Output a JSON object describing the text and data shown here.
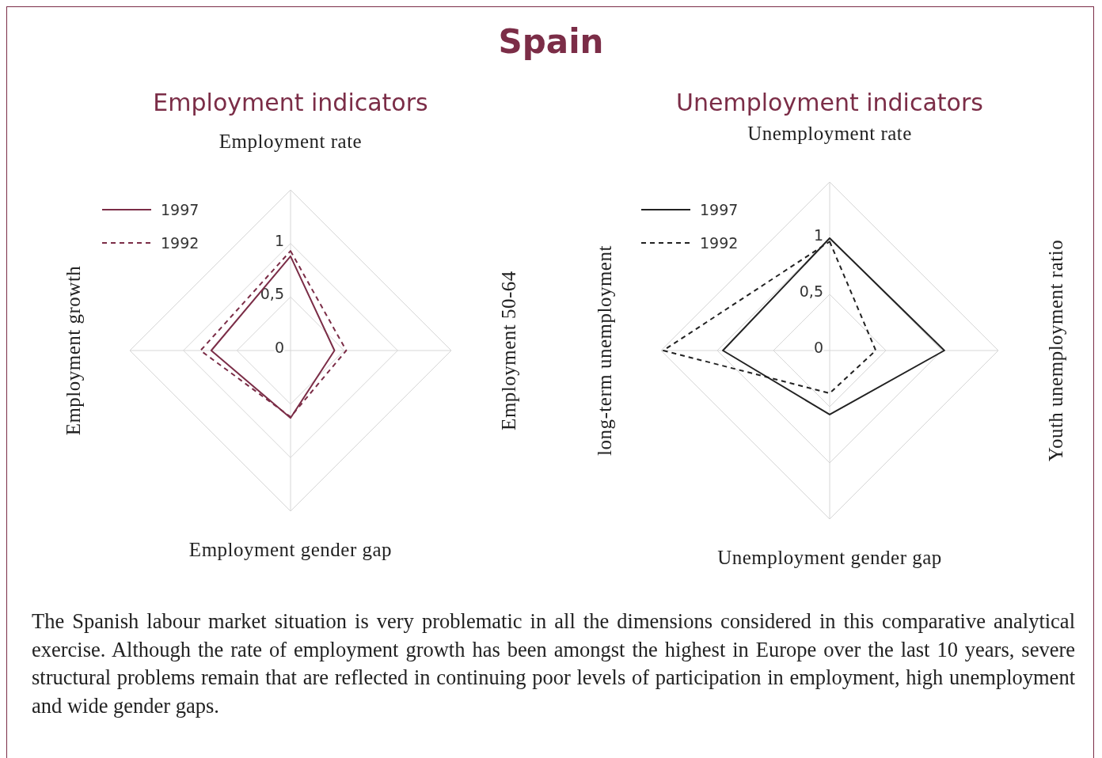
{
  "chart_data": [
    {
      "type": "radar",
      "title": "Employment indicators",
      "categories": [
        "Employment rate",
        "Employment 50-64",
        "Employment gender gap",
        "Employment growth"
      ],
      "ylim": [
        0,
        1.5
      ],
      "yticks": [
        {
          "value": 0,
          "label": "0"
        },
        {
          "value": 0.5,
          "label": "0,5"
        },
        {
          "value": 1,
          "label": "1"
        }
      ],
      "grid": true,
      "legend": "top left",
      "series": [
        {
          "name": "1997",
          "color": "#7b2d47",
          "line_style": "solid",
          "values": [
            0.88,
            0.41,
            0.63,
            0.74
          ]
        },
        {
          "name": "1992",
          "color": "#7b2d47",
          "line_style": "dashed",
          "values": [
            0.93,
            0.52,
            0.62,
            0.84
          ]
        }
      ],
      "annotations": [
        "Spain",
        "The Spanish labour market situation is very problematic in all the dimensions considered in this comparative analytical exercise. Although the rate of employment growth has been amongst the highest in Europe over the last 10 years, severe structural problems remain that are reflected in continuing poor levels of participation in employment, high unemployment and wide gender gaps."
      ]
    },
    {
      "type": "radar",
      "title": "Unemployment indicators",
      "categories": [
        "Unemployment rate",
        "Youth unemployment ratio",
        "Unemployment gender gap",
        "long-term unemployment"
      ],
      "ylim": [
        0,
        1.5
      ],
      "yticks": [
        {
          "value": 0,
          "label": "0"
        },
        {
          "value": 0.5,
          "label": "0,5"
        },
        {
          "value": 1,
          "label": "1"
        }
      ],
      "grid": true,
      "legend": "top left",
      "series": [
        {
          "name": "1997",
          "color": "#222222",
          "line_style": "solid",
          "values": [
            1.0,
            1.02,
            0.57,
            0.95
          ]
        },
        {
          "name": "1992",
          "color": "#222222",
          "line_style": "dashed",
          "values": [
            0.97,
            0.41,
            0.38,
            1.48
          ]
        }
      ]
    }
  ]
}
